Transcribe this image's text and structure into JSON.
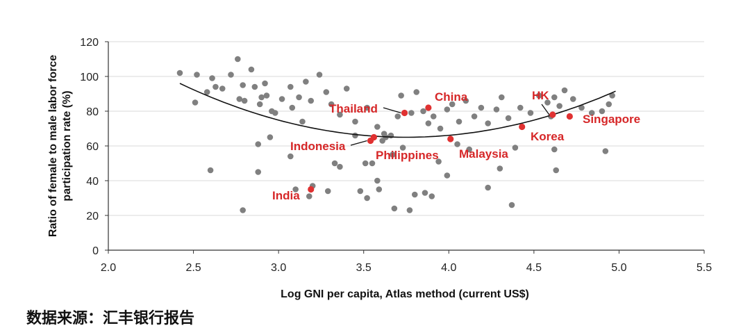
{
  "source_text": "数据来源：汇丰银行报告",
  "colors": {
    "point": "#808080",
    "highlight": "#e03131",
    "label": "#d62728",
    "axis": "#333333",
    "grid": "#d9d9d9",
    "fit": "#111111"
  },
  "chart_data": {
    "type": "scatter",
    "xlabel": "Log GNI per capita, Atlas method (current US$)",
    "ylabel_lines": [
      "Ratio of female to male labor force",
      "participation rate (%)"
    ],
    "xlim": [
      2.0,
      5.5
    ],
    "ylim": [
      0,
      120
    ],
    "xticks": [
      "2.0",
      "2.5",
      "3.0",
      "3.5",
      "4.0",
      "4.5",
      "5.0",
      "5.5"
    ],
    "yticks": [
      "0",
      "20",
      "40",
      "60",
      "80",
      "100",
      "120"
    ],
    "grid": "horizontal",
    "series": [
      {
        "points": [
          [
            2.42,
            102
          ],
          [
            2.52,
            101
          ],
          [
            2.58,
            91
          ],
          [
            2.61,
            99
          ],
          [
            2.63,
            94
          ],
          [
            2.67,
            93
          ],
          [
            2.72,
            101
          ],
          [
            2.76,
            110
          ],
          [
            2.77,
            87
          ],
          [
            2.79,
            95
          ],
          [
            2.8,
            86
          ],
          [
            2.84,
            104
          ],
          [
            2.86,
            94
          ],
          [
            2.89,
            84
          ],
          [
            2.9,
            88
          ],
          [
            2.92,
            96
          ],
          [
            2.93,
            89
          ],
          [
            2.96,
            80
          ],
          [
            2.98,
            79
          ],
          [
            3.02,
            87
          ],
          [
            3.07,
            94
          ],
          [
            3.08,
            82
          ],
          [
            3.12,
            88
          ],
          [
            3.14,
            74
          ],
          [
            3.16,
            97
          ],
          [
            3.19,
            86
          ],
          [
            3.24,
            101
          ],
          [
            3.28,
            91
          ],
          [
            3.31,
            84
          ],
          [
            3.36,
            78
          ],
          [
            3.4,
            93
          ],
          [
            3.45,
            74
          ],
          [
            3.52,
            82
          ],
          [
            3.58,
            71
          ],
          [
            3.62,
            67
          ],
          [
            3.66,
            66
          ],
          [
            3.7,
            77
          ],
          [
            3.72,
            89
          ],
          [
            3.78,
            79
          ],
          [
            3.81,
            91
          ],
          [
            3.85,
            80
          ],
          [
            3.88,
            73
          ],
          [
            3.91,
            77
          ],
          [
            3.95,
            70
          ],
          [
            3.99,
            81
          ],
          [
            4.02,
            84
          ],
          [
            4.06,
            74
          ],
          [
            4.1,
            86
          ],
          [
            4.15,
            77
          ],
          [
            4.19,
            82
          ],
          [
            4.23,
            73
          ],
          [
            4.28,
            81
          ],
          [
            4.31,
            88
          ],
          [
            4.35,
            76
          ],
          [
            4.42,
            82
          ],
          [
            4.48,
            79
          ],
          [
            4.53,
            89
          ],
          [
            4.58,
            85
          ],
          [
            4.6,
            77
          ],
          [
            4.62,
            88
          ],
          [
            4.65,
            83
          ],
          [
            4.68,
            92
          ],
          [
            4.73,
            87
          ],
          [
            4.78,
            82
          ],
          [
            4.84,
            79
          ],
          [
            4.9,
            80
          ],
          [
            4.96,
            89
          ],
          [
            2.51,
            85
          ],
          [
            2.6,
            46
          ],
          [
            2.79,
            23
          ],
          [
            2.88,
            61
          ],
          [
            2.88,
            45
          ],
          [
            2.95,
            65
          ],
          [
            3.07,
            54
          ],
          [
            3.1,
            35
          ],
          [
            3.18,
            31
          ],
          [
            3.2,
            37
          ],
          [
            3.29,
            34
          ],
          [
            3.33,
            50
          ],
          [
            3.36,
            48
          ],
          [
            3.45,
            66
          ],
          [
            3.48,
            34
          ],
          [
            3.51,
            50
          ],
          [
            3.52,
            30
          ],
          [
            3.55,
            50
          ],
          [
            3.58,
            40
          ],
          [
            3.59,
            35
          ],
          [
            3.61,
            63
          ],
          [
            3.63,
            65
          ],
          [
            3.67,
            55
          ],
          [
            3.68,
            24
          ],
          [
            3.73,
            59
          ],
          [
            3.77,
            23
          ],
          [
            3.8,
            32
          ],
          [
            3.86,
            33
          ],
          [
            3.9,
            31
          ],
          [
            3.94,
            51
          ],
          [
            3.99,
            43
          ],
          [
            4.05,
            61
          ],
          [
            4.12,
            58
          ],
          [
            4.23,
            36
          ],
          [
            4.3,
            47
          ],
          [
            4.37,
            26
          ],
          [
            4.39,
            59
          ],
          [
            4.63,
            46
          ],
          [
            4.62,
            58
          ],
          [
            4.92,
            57
          ],
          [
            4.94,
            84
          ]
        ]
      },
      {
        "labeled_points": [
          {
            "label": "China",
            "x": 3.88,
            "y": 82
          },
          {
            "label": "Thailand",
            "x": 3.74,
            "y": 79
          },
          {
            "label": "Indonesia",
            "x": 3.54,
            "y": 63
          },
          {
            "label": "Philippines",
            "x": 3.56,
            "y": 65
          },
          {
            "label": "Malaysia",
            "x": 4.01,
            "y": 64
          },
          {
            "label": "India",
            "x": 3.19,
            "y": 35
          },
          {
            "label": "HK",
            "x": 4.61,
            "y": 78
          },
          {
            "label": "Korea",
            "x": 4.43,
            "y": 71
          },
          {
            "label": "Singapore",
            "x": 4.71,
            "y": 77
          }
        ]
      }
    ],
    "trendline": {
      "type": "quadratic",
      "vertex_x": 3.75,
      "vertex_y": 65,
      "x_range": [
        2.42,
        4.98
      ],
      "y_at_start": 96,
      "y_at_end": 90
    }
  }
}
